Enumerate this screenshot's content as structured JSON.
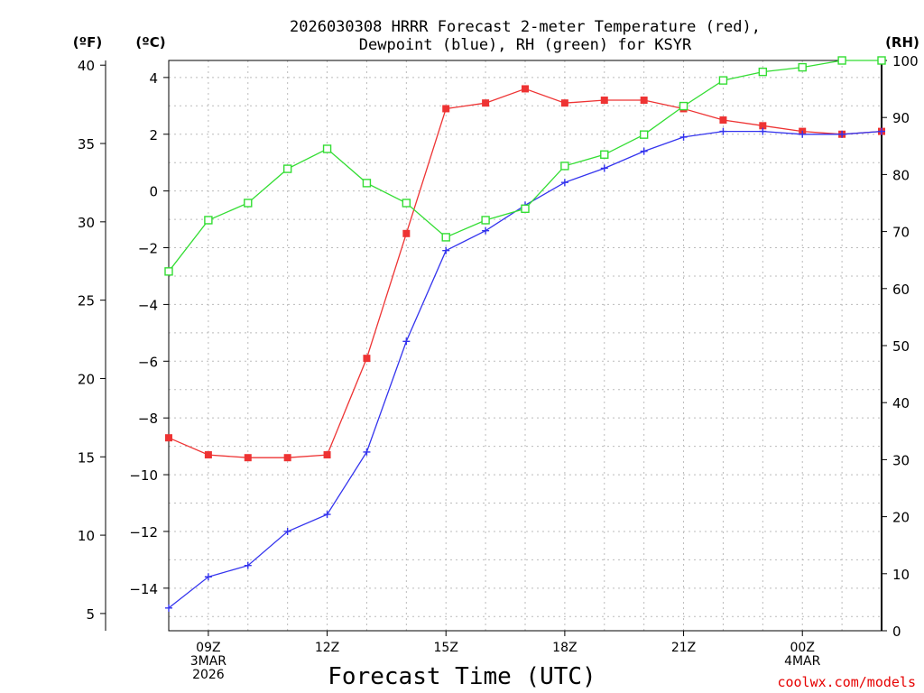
{
  "chart_data": {
    "type": "line",
    "title_lines": [
      "2026030308 HRRR Forecast 2-meter Temperature (red),",
      "Dewpoint (blue), RH (green) for KSYR"
    ],
    "units": {
      "fahrenheit": "(ºF)",
      "celsius": "(ºC)",
      "rh": "(RH)"
    },
    "xlabel": "Forecast Time (UTC)",
    "credit": "coolwx.com/models",
    "x_hours": [
      8,
      9,
      10,
      11,
      12,
      13,
      14,
      15,
      16,
      17,
      18,
      19,
      20,
      21,
      22,
      23,
      24,
      25,
      26
    ],
    "xlim": [
      8,
      26
    ],
    "x_ticks": [
      {
        "hour": 9,
        "lines": [
          "09Z",
          "3MAR",
          "2026"
        ]
      },
      {
        "hour": 12,
        "lines": [
          "12Z"
        ]
      },
      {
        "hour": 15,
        "lines": [
          "15Z"
        ]
      },
      {
        "hour": 18,
        "lines": [
          "18Z"
        ]
      },
      {
        "hour": 21,
        "lines": [
          "21Z"
        ]
      },
      {
        "hour": 24,
        "lines": [
          "00Z",
          "4MAR"
        ]
      }
    ],
    "celsius_axis": {
      "ylim": [
        -15.5,
        4.6
      ],
      "ticks": [
        4,
        2,
        0,
        -2,
        -4,
        -6,
        -8,
        -10,
        -12,
        -14
      ]
    },
    "fahrenheit_axis": {
      "ylim": [
        3.9,
        40.3
      ],
      "ticks": [
        40,
        35,
        30,
        25,
        20,
        15,
        10,
        5
      ]
    },
    "rh_axis": {
      "ylim": [
        0,
        100
      ],
      "ticks": [
        100,
        90,
        80,
        70,
        60,
        50,
        40,
        30,
        20,
        10,
        0
      ]
    },
    "series": [
      {
        "name": "2-meter Temperature",
        "axis": "celsius",
        "color": "#ee3333",
        "marker": "filled-square",
        "values": [
          -8.7,
          -9.3,
          -9.4,
          -9.4,
          -9.3,
          -5.9,
          -1.5,
          2.9,
          3.1,
          3.6,
          3.1,
          3.2,
          3.2,
          2.9,
          2.5,
          2.3,
          2.1,
          2.0,
          2.1
        ]
      },
      {
        "name": "Dewpoint",
        "axis": "celsius",
        "color": "#3333ee",
        "marker": "plus",
        "values": [
          -14.7,
          -13.6,
          -13.2,
          -12.0,
          -11.4,
          -9.2,
          -5.3,
          -2.1,
          -1.4,
          -0.5,
          0.3,
          0.8,
          1.4,
          1.9,
          2.1,
          2.1,
          2.0,
          2.0,
          2.1
        ]
      },
      {
        "name": "Relative Humidity",
        "axis": "rh",
        "color": "#33dd33",
        "marker": "open-square",
        "values": [
          63,
          72,
          75,
          81,
          84.5,
          78.5,
          75,
          69,
          72,
          74,
          81.5,
          83.5,
          87,
          92,
          96.5,
          98,
          98.8,
          100,
          100
        ]
      }
    ]
  }
}
